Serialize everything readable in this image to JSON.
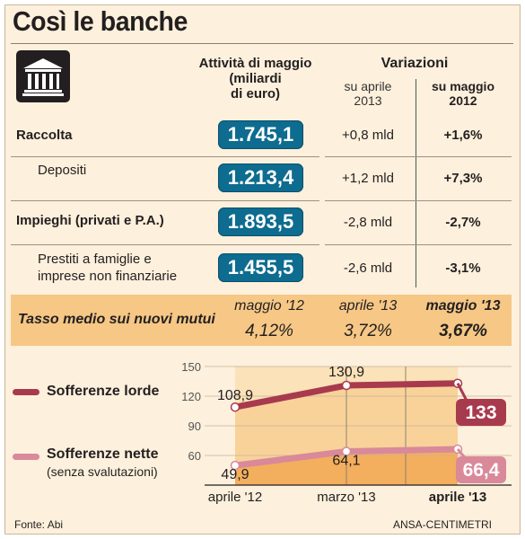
{
  "title": "Così le banche",
  "table": {
    "col_activity": "Attività di maggio (miliardi di euro)",
    "col_activity_lines": [
      "Attività di maggio",
      "(miliardi",
      "di euro)"
    ],
    "col_variations": "Variazioni",
    "sub_apr2013_lines": [
      "su aprile",
      "2013"
    ],
    "sub_may2012_lines": [
      "su maggio",
      "2012"
    ],
    "rows": [
      {
        "label_lines": [
          "Raccolta"
        ],
        "bold": true,
        "value": "1.745,1",
        "var_apr": "+0,8 mld",
        "var_may": "+1,6%"
      },
      {
        "label_lines": [
          "Depositi"
        ],
        "bold": false,
        "value": "1.213,4",
        "var_apr": "+1,2 mld",
        "var_may": "+7,3%"
      },
      {
        "label_lines": [
          "Impieghi (privati e P.A.)"
        ],
        "bold": true,
        "value": "1.893,5",
        "var_apr": "-2,8 mld",
        "var_may": "-2,7%"
      },
      {
        "label_lines": [
          "Prestiti a famiglie e",
          "imprese non finanziarie"
        ],
        "bold": false,
        "value": "1.455,5",
        "var_apr": "-2,6 mld",
        "var_may": "-3,1%"
      }
    ]
  },
  "tasso": {
    "label": "Tasso medio sui nuovi mutui",
    "periods": [
      "maggio '12",
      "aprile '13",
      "maggio '13"
    ],
    "values": [
      "4,12%",
      "3,72%",
      "3,67%"
    ]
  },
  "legend": {
    "lorde": "Sofferenze lorde",
    "nette": "Sofferenze nette",
    "nette_note": "(senza svalutazioni)"
  },
  "footer": {
    "source": "Fonte: Abi",
    "credit": "ANSA-CENTIMETRI"
  },
  "colors": {
    "pill": "#0d6c8f",
    "lorde": "#a83a4e",
    "nette": "#d9899a",
    "band": "#f6c785"
  },
  "chart_data": {
    "type": "line",
    "categories": [
      "aprile '12",
      "marzo '13",
      "aprile '13"
    ],
    "series": [
      {
        "name": "Sofferenze lorde",
        "values": [
          108.9,
          130.9,
          133
        ],
        "labels": [
          "108,9",
          "130,9",
          "133"
        ]
      },
      {
        "name": "Sofferenze nette",
        "values": [
          49.9,
          64.1,
          66.4
        ],
        "labels": [
          "49,9",
          "64,1",
          "66,4"
        ]
      }
    ],
    "yticks": [
      60,
      90,
      120,
      150
    ],
    "ylim": [
      30,
      150
    ]
  }
}
